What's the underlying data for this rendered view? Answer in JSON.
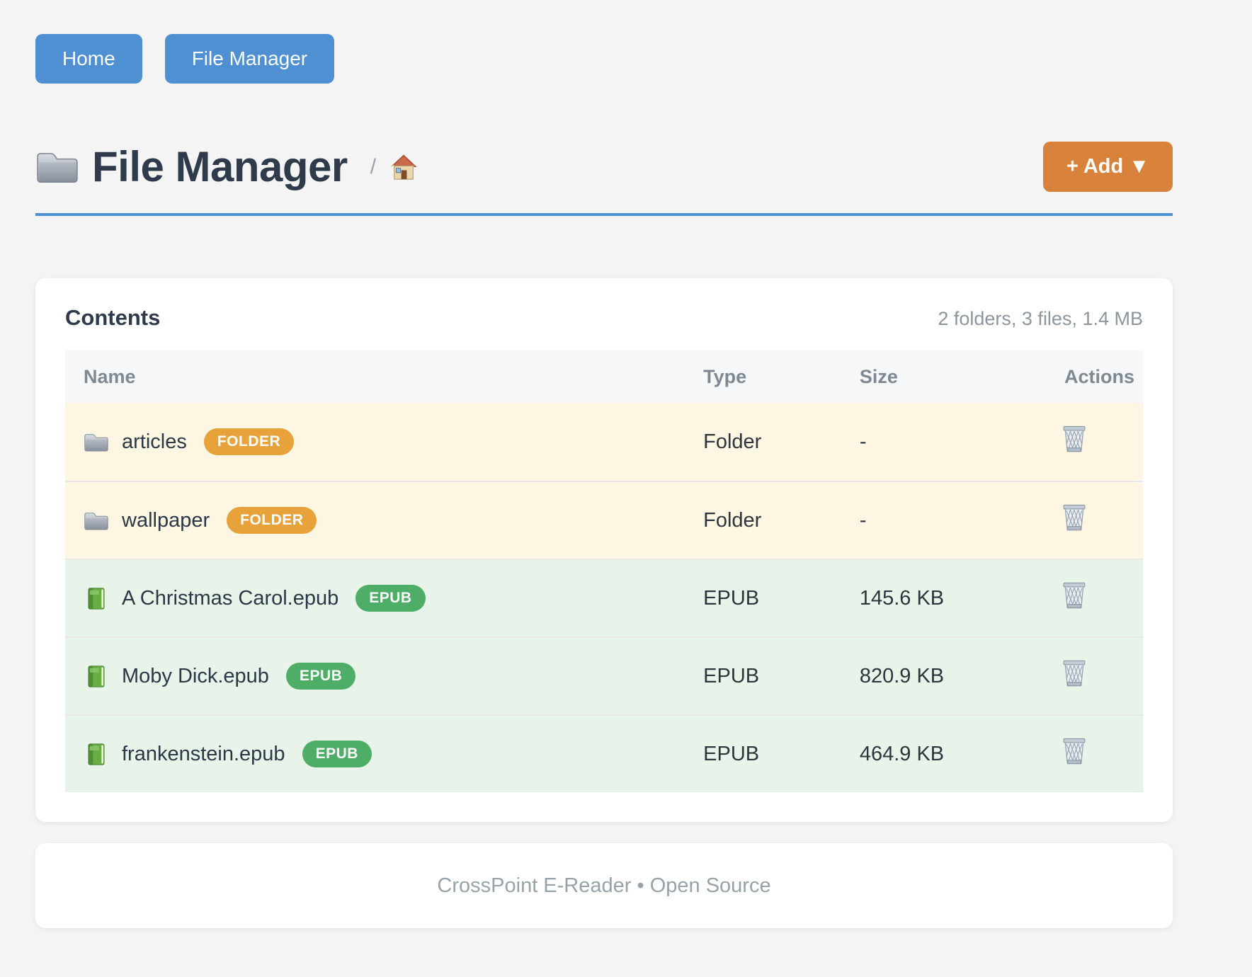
{
  "nav": {
    "home_label": "Home",
    "file_manager_label": "File Manager"
  },
  "page_header": {
    "title": "File Manager",
    "breadcrumb_separator": "/",
    "add_button_label": "+ Add ▼"
  },
  "panel": {
    "title": "Contents",
    "summary": "2 folders, 3 files, 1.4 MB",
    "columns": {
      "name": "Name",
      "type": "Type",
      "size": "Size",
      "actions": "Actions"
    },
    "rows": [
      {
        "icon": "folder-icon",
        "name": "articles",
        "badge": "FOLDER",
        "badge_color": "#e8a23c",
        "type": "Folder",
        "size": "-",
        "row_bg": "#fdf6e2"
      },
      {
        "icon": "folder-icon",
        "name": "wallpaper",
        "badge": "FOLDER",
        "badge_color": "#e8a23c",
        "type": "Folder",
        "size": "-",
        "row_bg": "#fdf6e2"
      },
      {
        "icon": "book-icon",
        "name": "A Christmas Carol.epub",
        "badge": "EPUB",
        "badge_color": "#4ead66",
        "type": "EPUB",
        "size": "145.6 KB",
        "row_bg": "#e8f3e9"
      },
      {
        "icon": "book-icon",
        "name": "Moby Dick.epub",
        "badge": "EPUB",
        "badge_color": "#4ead66",
        "type": "EPUB",
        "size": "820.9 KB",
        "row_bg": "#e8f3e9"
      },
      {
        "icon": "book-icon",
        "name": "frankenstein.epub",
        "badge": "EPUB",
        "badge_color": "#4ead66",
        "type": "EPUB",
        "size": "464.9 KB",
        "row_bg": "#e8f3e9"
      }
    ]
  },
  "footer": {
    "text": "CrossPoint E-Reader • Open Source"
  },
  "colors": {
    "page_bg": "#f4f4f5",
    "nav_button_blue": "#4e90d2",
    "title_rule_blue": "#4a90d5",
    "add_button_orange": "#d8823b",
    "folder_badge_orange": "#e8a23c",
    "epub_badge_green": "#4ead66",
    "folder_row_bg": "#fdf6e2",
    "epub_row_bg": "#e8f3e9"
  }
}
